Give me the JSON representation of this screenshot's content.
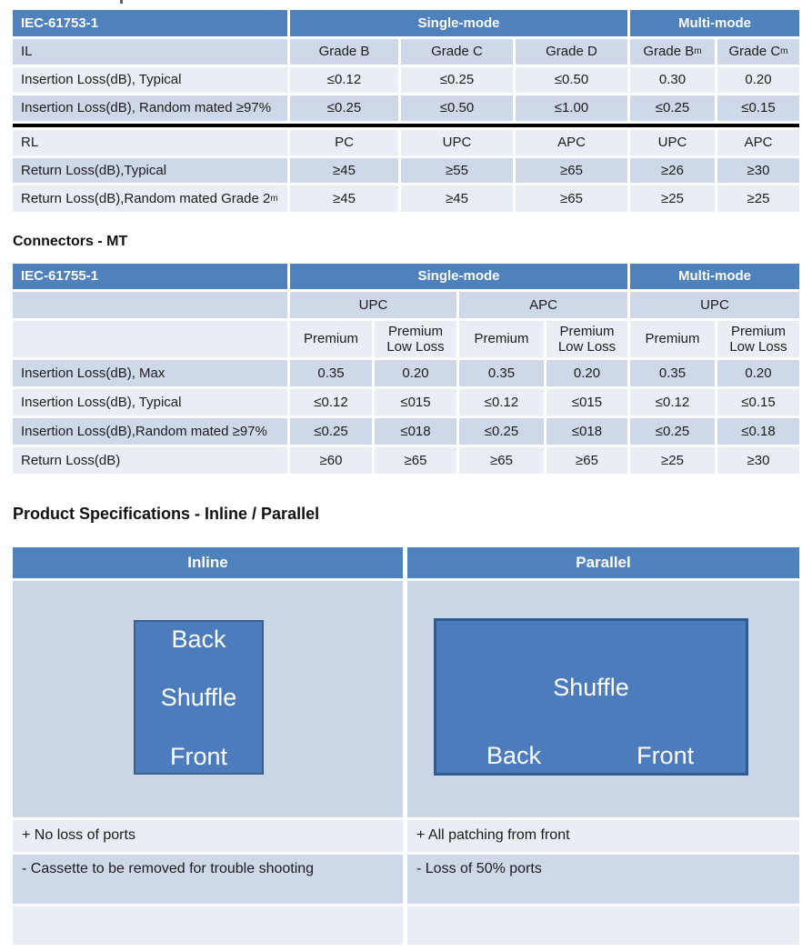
{
  "colors": {
    "header_blue": "#4f81bd",
    "band_dark": "#cfd8e8",
    "band_light": "#e9edf4",
    "diagram_background": "#ccd5e5",
    "shuffle_box_fill": "#4d7cbd",
    "shuffle_box_border": "#365f91",
    "section_divider": "#000000",
    "text": "#1c1c1c"
  },
  "headings": {
    "connectors": "Connectors - MT",
    "product": "Product Specifications - Inline / Parallel"
  },
  "tables": [
    {
      "id": "iec61753",
      "rows": [
        [
          {
            "t": "IEC-61753-1"
          },
          {
            "t": "Single-mode",
            "span": 3
          },
          {
            "t": "Multi-mode",
            "span": 2
          }
        ],
        [
          {
            "t": "IL"
          },
          {
            "t": "Grade B"
          },
          {
            "t": "Grade C"
          },
          {
            "t": "Grade D"
          },
          {
            "t": "Grade B",
            "sub": "m"
          },
          {
            "t": "Grade C",
            "sub": "m"
          }
        ],
        [
          {
            "t": "Insertion Loss(dB), Typical"
          },
          {
            "t": "≤0.12"
          },
          {
            "t": "≤0.25"
          },
          {
            "t": "≤0.50"
          },
          {
            "t": "0.30"
          },
          {
            "t": "0.20"
          }
        ],
        [
          {
            "t": "Insertion Loss(dB), Random mated ≥97%"
          },
          {
            "t": "≤0.25"
          },
          {
            "t": "≤0.50"
          },
          {
            "t": "≤1.00"
          },
          {
            "t": "≤0.25"
          },
          {
            "t": "≤0.15"
          }
        ],
        [
          {
            "t": "",
            "span": 6
          }
        ],
        [
          {
            "t": "RL"
          },
          {
            "t": "PC"
          },
          {
            "t": "UPC"
          },
          {
            "t": "APC"
          },
          {
            "t": "UPC"
          },
          {
            "t": "APC"
          }
        ],
        [
          {
            "t": "Return Loss(dB),Typical"
          },
          {
            "t": "≥45"
          },
          {
            "t": "≥55"
          },
          {
            "t": "≥65"
          },
          {
            "t": "≥26"
          },
          {
            "t": "≥30"
          }
        ],
        [
          {
            "t": "Return Loss(dB),Random mated Grade 2",
            "sub": "m"
          },
          {
            "t": "≥45"
          },
          {
            "t": "≥45"
          },
          {
            "t": "≥65"
          },
          {
            "t": "≥25"
          },
          {
            "t": "≥25"
          }
        ]
      ]
    },
    {
      "id": "iec61755",
      "rows": [
        [
          {
            "t": "IEC-61755-1"
          },
          {
            "t": "Single-mode",
            "span": 4
          },
          {
            "t": "Multi-mode",
            "span": 2
          }
        ],
        [
          {
            "t": ""
          },
          {
            "t": "UPC",
            "span": 2
          },
          {
            "t": "APC",
            "span": 2
          },
          {
            "t": "UPC",
            "span": 2
          }
        ],
        [
          {
            "t": ""
          },
          {
            "t": "Premium"
          },
          {
            "t": "Premium Low Loss"
          },
          {
            "t": "Premium"
          },
          {
            "t": "Premium Low Loss"
          },
          {
            "t": "Premium"
          },
          {
            "t": "Premium Low Loss"
          }
        ],
        [
          {
            "t": "Insertion Loss(dB), Max"
          },
          {
            "t": "0.35"
          },
          {
            "t": "0.20"
          },
          {
            "t": "0.35"
          },
          {
            "t": "0.20"
          },
          {
            "t": "0.35"
          },
          {
            "t": "0.20"
          }
        ],
        [
          {
            "t": "Insertion Loss(dB), Typical"
          },
          {
            "t": "≤0.12"
          },
          {
            "t": "≤015"
          },
          {
            "t": "≤0.12"
          },
          {
            "t": "≤015"
          },
          {
            "t": "≤0.12"
          },
          {
            "t": "≤0.15"
          }
        ],
        [
          {
            "t": "Insertion Loss(dB),Random mated ≥97%"
          },
          {
            "t": "≤0.25"
          },
          {
            "t": "≤018"
          },
          {
            "t": "≤0.25"
          },
          {
            "t": "≤018"
          },
          {
            "t": "≤0.25"
          },
          {
            "t": "≤0.18"
          }
        ],
        [
          {
            "t": "Return Loss(dB)"
          },
          {
            "t": "≥60"
          },
          {
            "t": "≥65"
          },
          {
            "t": "≥65"
          },
          {
            "t": "≥65"
          },
          {
            "t": "≥25"
          },
          {
            "t": "≥30"
          }
        ]
      ]
    }
  ],
  "table3": {
    "headers": [
      "Inline",
      "Parallel"
    ],
    "inline_diagram": {
      "top": "Back",
      "middle": "Shuffle",
      "bottom": "Front"
    },
    "parallel_diagram": {
      "center": "Shuffle",
      "bottom_left": "Back",
      "bottom_right": "Front"
    },
    "pros": [
      "+ No loss of ports",
      "+ All patching from front"
    ],
    "cons": [
      "- Cassette to be removed for trouble shooting",
      "- Loss of 50% ports"
    ],
    "empty_row": [
      "",
      ""
    ]
  }
}
